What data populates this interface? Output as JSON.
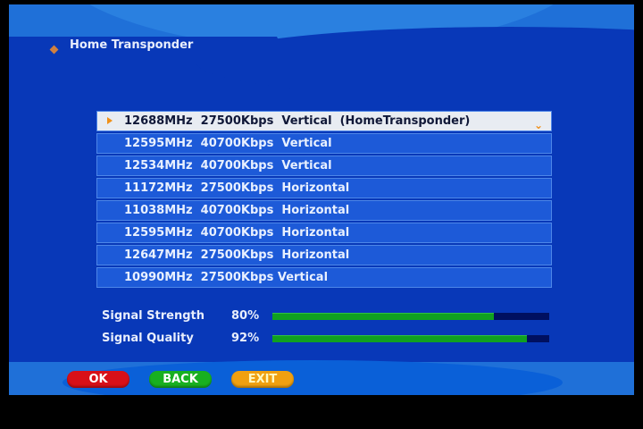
{
  "header": {
    "title": "Home Transponder",
    "bullet_icon": "diamond-icon"
  },
  "transponders": [
    {
      "text": "12688MHz  27500Kbps  Vertical  (HomeTransponder)",
      "selected": true
    },
    {
      "text": "12595MHz  40700Kbps  Vertical"
    },
    {
      "text": "12534MHz  40700Kbps  Vertical"
    },
    {
      "text": "11172MHz  27500Kbps  Horizontal"
    },
    {
      "text": "11038MHz  40700Kbps  Horizontal"
    },
    {
      "text": "12595MHz  40700Kbps  Horizontal"
    },
    {
      "text": "12647MHz  27500Kbps  Horizontal"
    },
    {
      "text": "10990MHz  27500Kbps Vertical"
    }
  ],
  "dropdown_icon": "⌄",
  "signal": {
    "strength_label": "Signal Strength",
    "strength_value": "80%",
    "strength_fraction": 0.8,
    "quality_label": "Signal Quality",
    "quality_value": "92%",
    "quality_fraction": 0.92,
    "bar_color": "#10a020"
  },
  "buttons": {
    "ok": "OK",
    "back": "BACK",
    "exit": "EXIT",
    "ok_color": "#d81018",
    "back_color": "#18b020",
    "exit_color": "#f0a010"
  }
}
